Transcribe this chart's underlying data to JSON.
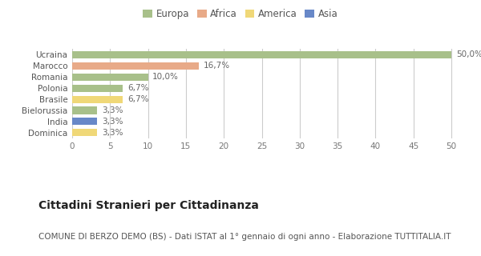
{
  "countries": [
    "Ucraina",
    "Marocco",
    "Romania",
    "Polonia",
    "Brasile",
    "Bielorussia",
    "India",
    "Dominica"
  ],
  "values": [
    50.0,
    16.7,
    10.0,
    6.7,
    6.7,
    3.3,
    3.3,
    3.3
  ],
  "labels": [
    "50,0%",
    "16,7%",
    "10,0%",
    "6,7%",
    "6,7%",
    "3,3%",
    "3,3%",
    "3,3%"
  ],
  "colors": [
    "#a8c08a",
    "#e8aa88",
    "#a8c08a",
    "#a8c08a",
    "#f0d878",
    "#a8c08a",
    "#6888c8",
    "#f0d878"
  ],
  "legend_labels": [
    "Europa",
    "Africa",
    "America",
    "Asia"
  ],
  "legend_colors": [
    "#a8c08a",
    "#e8aa88",
    "#f0d878",
    "#6888c8"
  ],
  "xlim": [
    0,
    52
  ],
  "xticks": [
    0,
    5,
    10,
    15,
    20,
    25,
    30,
    35,
    40,
    45,
    50
  ],
  "title": "Cittadini Stranieri per Cittadinanza",
  "subtitle": "COMUNE DI BERZO DEMO (BS) - Dati ISTAT al 1° gennaio di ogni anno - Elaborazione TUTTITALIA.IT",
  "bg_color": "#ffffff",
  "bar_height": 0.65,
  "title_fontsize": 10,
  "subtitle_fontsize": 7.5,
  "label_fontsize": 7.5,
  "tick_fontsize": 7.5,
  "legend_fontsize": 8.5
}
